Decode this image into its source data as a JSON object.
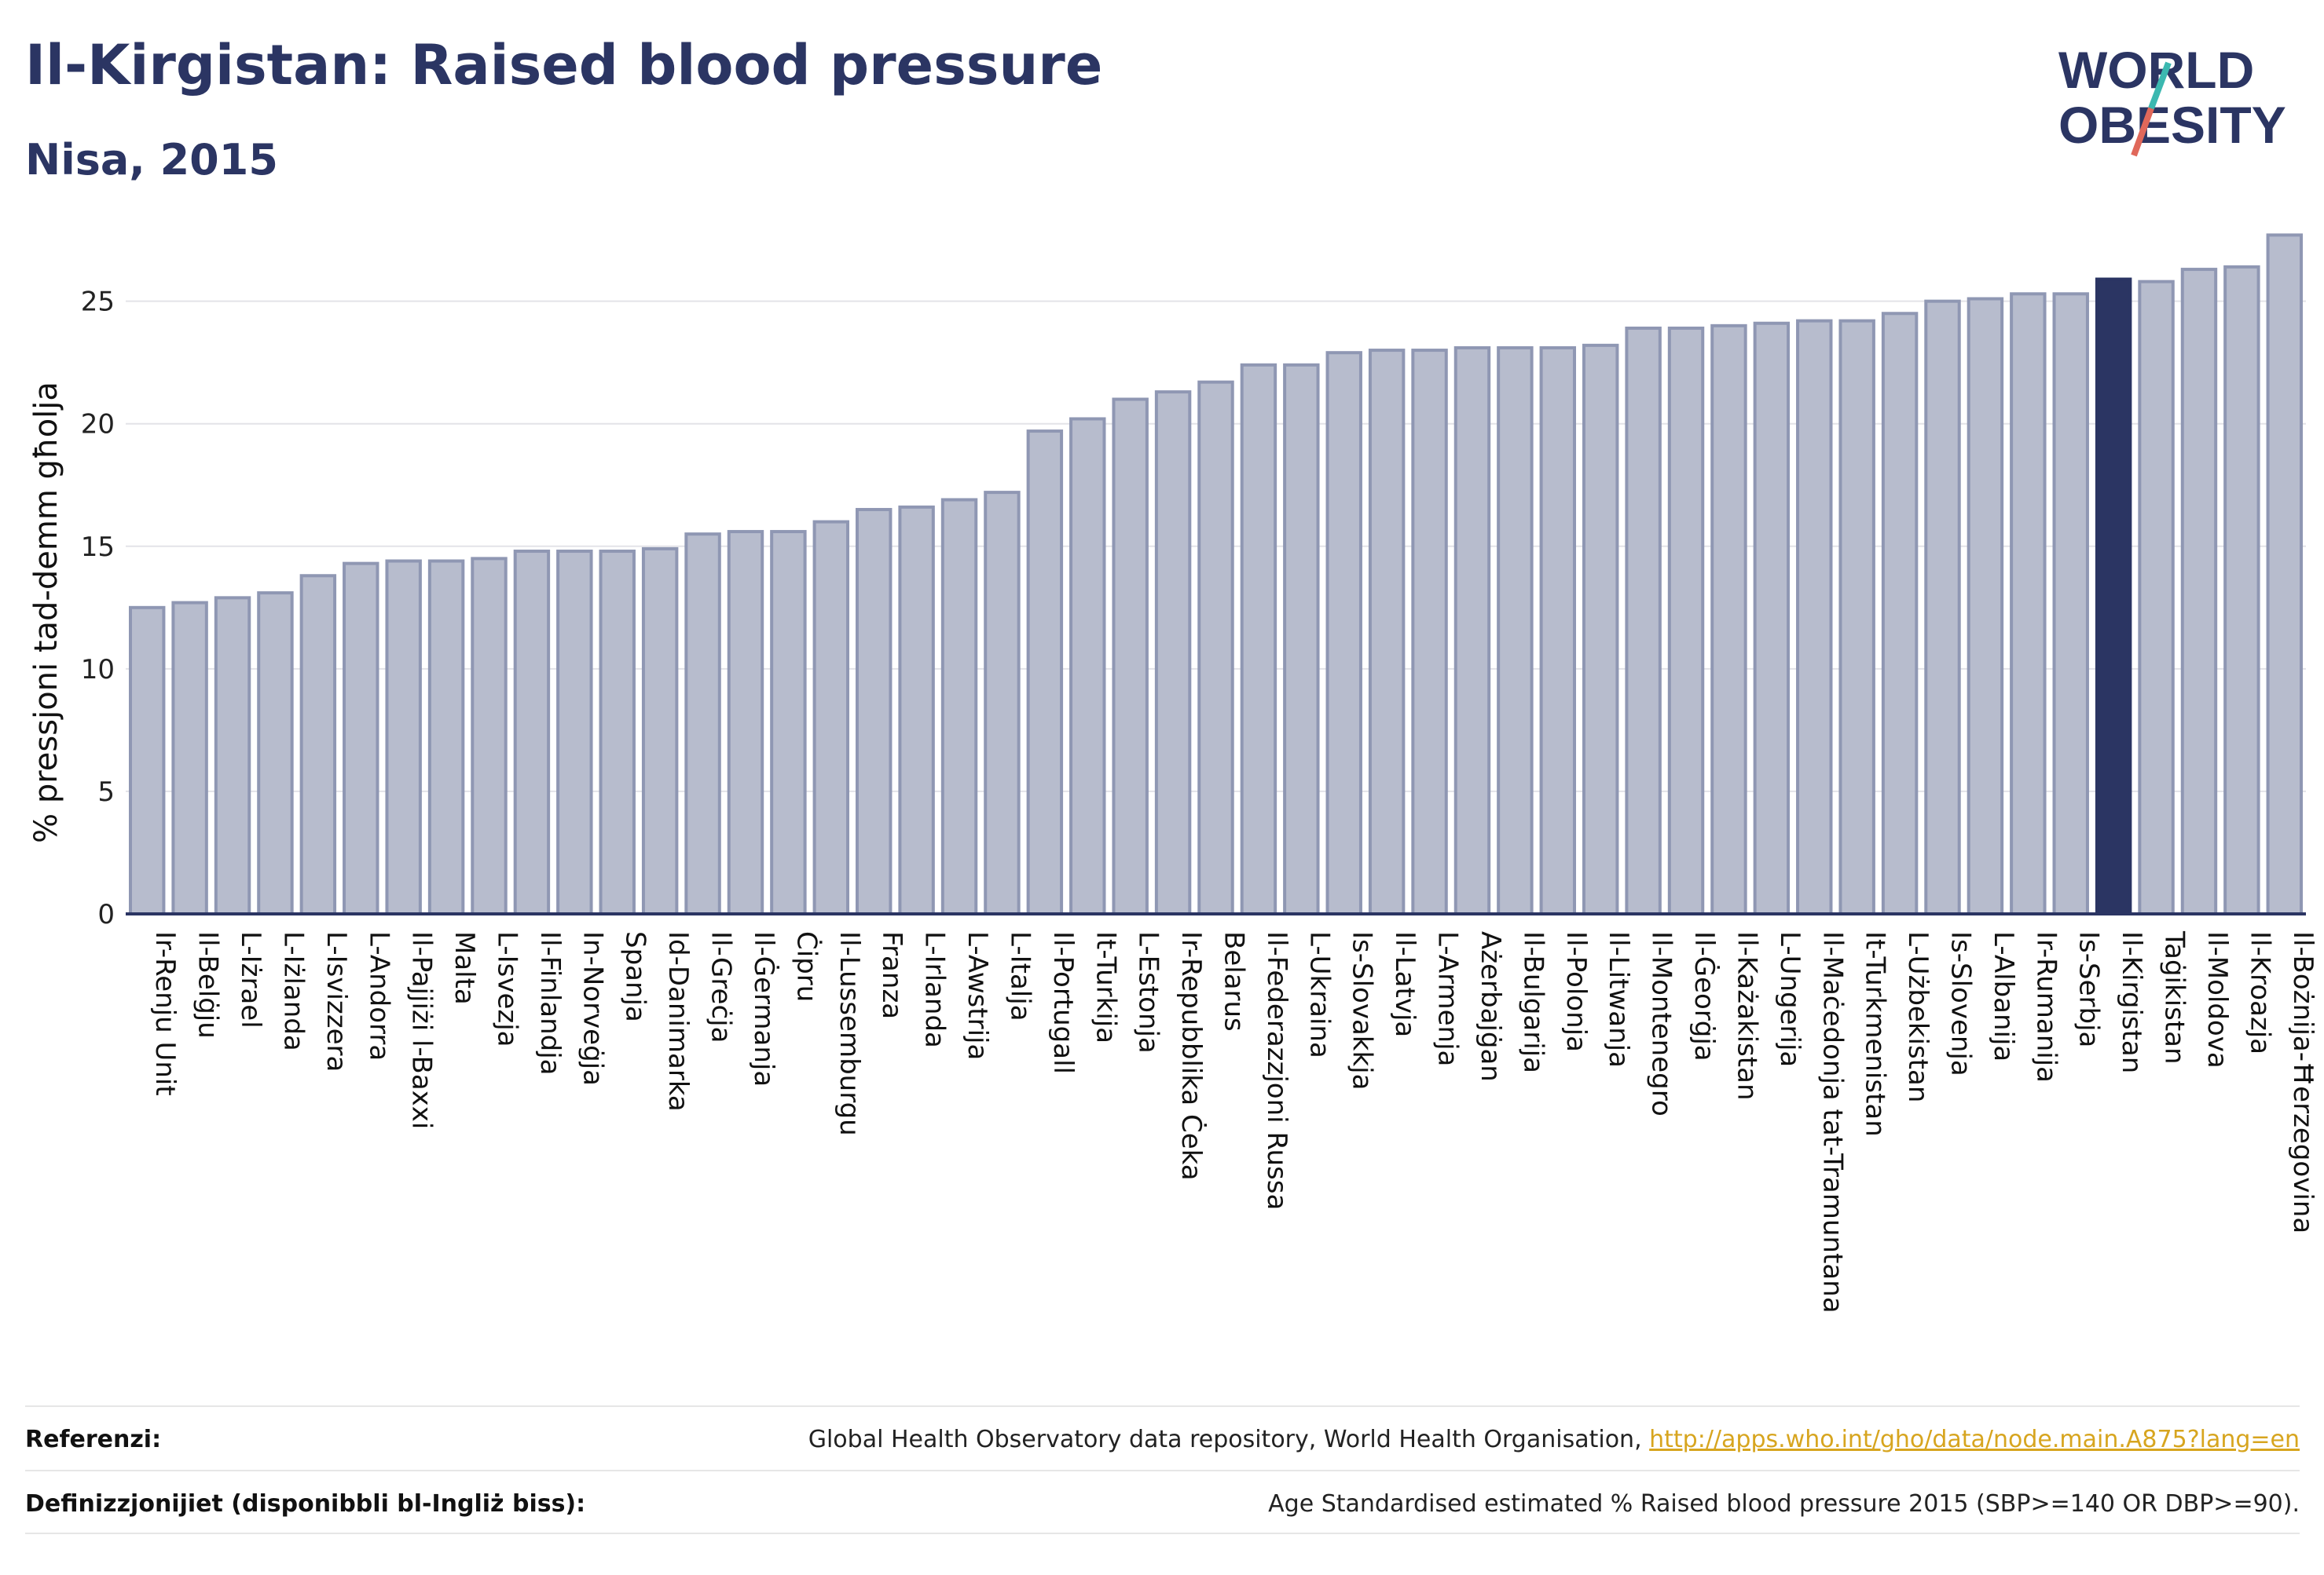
{
  "header": {
    "title": "Il-Kirgistan: Raised blood pressure",
    "subtitle": "Nisa, 2015"
  },
  "logo": {
    "line1": "WORLD",
    "line2": "OBESITY",
    "colors": {
      "text": "#2b3563",
      "slash_top": "#3bb8b0",
      "slash_bottom": "#e0685a"
    }
  },
  "chart_data": {
    "type": "bar",
    "ylabel": "% pressjoni tad-demm għolja",
    "ylim": [
      0,
      28
    ],
    "yticks": [
      0,
      5,
      10,
      15,
      20,
      25
    ],
    "grid": true,
    "highlight": "Il-Kirgistan",
    "colors": {
      "bar": "#b7bccd",
      "bar_stroke": "#8f97b3",
      "highlight": "#2b3563"
    },
    "categories": [
      "Ir-Renju Unit",
      "Il-Belġju",
      "L-Iżrael",
      "L-Iżlanda",
      "L-Isvizzera",
      "L-Andorra",
      "Il-Pajjiżi l-Baxxi",
      "Malta",
      "L-Isvezja",
      "Il-Finlandja",
      "In-Norveġja",
      "Spanja",
      "Id-Danimarka",
      "Il-Greċja",
      "Il-Ġermanja",
      "Ċipru",
      "Il-Lussemburgu",
      "Franza",
      "L-Irlanda",
      "L-Awstrija",
      "L-Italja",
      "Il-Portugall",
      "It-Turkija",
      "L-Estonja",
      "Ir-Repubblika Ċeka",
      "Belarus",
      "Il-Federazzjoni Russa",
      "L-Ukraina",
      "Is-Slovakkja",
      "Il-Latvja",
      "L-Armenja",
      "Ażerbajġan",
      "Il-Bulgarija",
      "Il-Polonja",
      "Il-Litwanja",
      "Il-Montenegro",
      "Il-Ġeorġja",
      "Il-Każakistan",
      "L-Ungerija",
      "Il-Maċedonja tat-Tramuntana",
      "It-Turkmenistan",
      "L-Użbekistan",
      "Is-Slovenja",
      "L-Albanija",
      "Ir-Rumanija",
      "Is-Serbja",
      "Il-Kirgistan",
      "Taġikistan",
      "Il-Moldova",
      "Il-Kroazja",
      "Il-Bożnija-Ħerzegovina"
    ],
    "values": [
      12.5,
      12.7,
      12.9,
      13.1,
      13.8,
      14.3,
      14.4,
      14.4,
      14.5,
      14.8,
      14.8,
      14.8,
      14.9,
      15.5,
      15.6,
      15.6,
      16.0,
      16.5,
      16.6,
      16.9,
      17.2,
      19.7,
      20.2,
      21.0,
      21.3,
      21.7,
      22.4,
      22.4,
      22.9,
      23.0,
      23.0,
      23.1,
      23.1,
      23.1,
      23.2,
      23.9,
      23.9,
      24.0,
      24.1,
      24.2,
      24.2,
      24.5,
      25.0,
      25.1,
      25.3,
      25.3,
      25.9,
      25.8,
      26.3,
      26.4,
      27.7
    ]
  },
  "footer": {
    "references_label": "Referenzi:",
    "references_text": "Global Health Observatory data repository, World Health Organisation, ",
    "references_link": "http://apps.who.int/gho/data/node.main.A875?lang=en",
    "definitions_label": "Definizzjonijiet (disponibbli bl-Ingliż biss):",
    "definitions_text": "Age Standardised estimated % Raised blood pressure 2015 (SBP>=140 OR DBP>=90)."
  }
}
